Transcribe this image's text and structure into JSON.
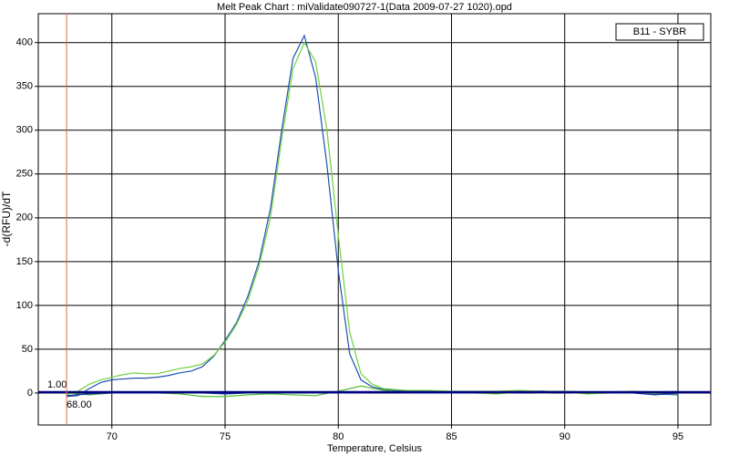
{
  "chart_data": {
    "type": "line",
    "title": "Melt Peak Chart : miValidate090727-1(Data 2009-07-27 1020).opd",
    "xlabel": "Temperature, Celsius",
    "ylabel": "-d(RFU)/dT",
    "legend_label": "B11 - SYBR",
    "legend_position": "upper right",
    "grid": true,
    "xlim": [
      66.75,
      96.45
    ],
    "ylim": [
      -36.5,
      433
    ],
    "xticks": [
      70,
      75,
      80,
      85,
      90,
      95
    ],
    "yticks": [
      0,
      50,
      100,
      150,
      200,
      250,
      300,
      350,
      400
    ],
    "threshold": {
      "value": 1,
      "label": "1.00",
      "color": "#000080"
    },
    "cutoff": {
      "value": 68,
      "label": "68.00",
      "color": "#e07040"
    },
    "series": [
      {
        "color": "#2050b0",
        "x": [
          68,
          68.5,
          69,
          69.5,
          70,
          70.5,
          71,
          71.5,
          72,
          72.5,
          73,
          73.5,
          74,
          74.5,
          75,
          75.5,
          76,
          76.5,
          77,
          77.5,
          78,
          78.5,
          79,
          79.5,
          80,
          80.5,
          81,
          81.5,
          82,
          82.5,
          83,
          84,
          85,
          86,
          87,
          88,
          89,
          90,
          91,
          92,
          93,
          94,
          95
        ],
        "values": [
          -4,
          -3,
          5,
          12,
          15,
          16,
          17,
          17,
          18,
          20,
          23,
          25,
          30,
          42,
          60,
          80,
          110,
          150,
          210,
          300,
          382,
          408,
          360,
          260,
          140,
          45,
          15,
          7,
          4,
          3,
          2,
          2,
          1,
          1,
          1,
          2,
          2,
          1,
          1,
          0,
          1,
          -1,
          -2
        ]
      },
      {
        "color": "#70d040",
        "x": [
          68,
          68.5,
          69,
          69.5,
          70,
          70.5,
          71,
          71.5,
          72,
          72.5,
          73,
          73.5,
          74,
          74.5,
          75,
          75.5,
          76,
          76.5,
          77,
          77.5,
          78,
          78.5,
          79,
          79.5,
          80,
          80.5,
          81,
          81.5,
          82,
          82.5,
          83,
          84,
          85,
          86,
          87,
          88,
          89,
          90,
          91,
          92,
          93,
          94,
          95
        ],
        "values": [
          -2,
          2,
          10,
          15,
          18,
          21,
          23,
          22,
          22,
          25,
          28,
          30,
          33,
          43,
          58,
          78,
          105,
          145,
          200,
          290,
          370,
          400,
          378,
          300,
          180,
          70,
          22,
          10,
          5,
          4,
          3,
          3,
          2,
          2,
          2,
          3,
          2,
          2,
          1,
          1,
          2,
          1,
          2
        ]
      },
      {
        "color": "#50c030",
        "x": [
          68,
          69,
          70,
          71,
          72,
          73,
          74,
          75,
          76,
          77,
          78,
          79,
          80,
          81,
          82,
          83,
          84,
          85,
          86,
          87,
          88,
          89,
          90,
          91,
          92,
          93,
          94,
          95
        ],
        "values": [
          0,
          -2,
          0,
          1,
          0,
          -1,
          -4,
          -4,
          -2,
          -1,
          -2,
          -3,
          2,
          8,
          3,
          1,
          0,
          0,
          0,
          -1,
          1,
          0,
          1,
          -1,
          0,
          0,
          -1,
          -1
        ]
      },
      {
        "color": "#1030a0",
        "x": [
          68,
          69,
          70,
          71,
          72,
          73,
          74,
          75,
          76,
          77,
          78,
          79,
          80,
          81,
          82,
          83,
          84,
          85,
          86,
          87,
          88,
          89,
          90,
          91,
          92,
          93,
          94,
          95
        ],
        "values": [
          -3,
          -1,
          0,
          0,
          0,
          0,
          0,
          -1,
          0,
          0,
          0,
          0,
          0,
          0,
          1,
          0,
          0,
          0,
          0,
          1,
          0,
          2,
          0,
          1,
          0,
          0,
          -2,
          0
        ]
      }
    ]
  }
}
